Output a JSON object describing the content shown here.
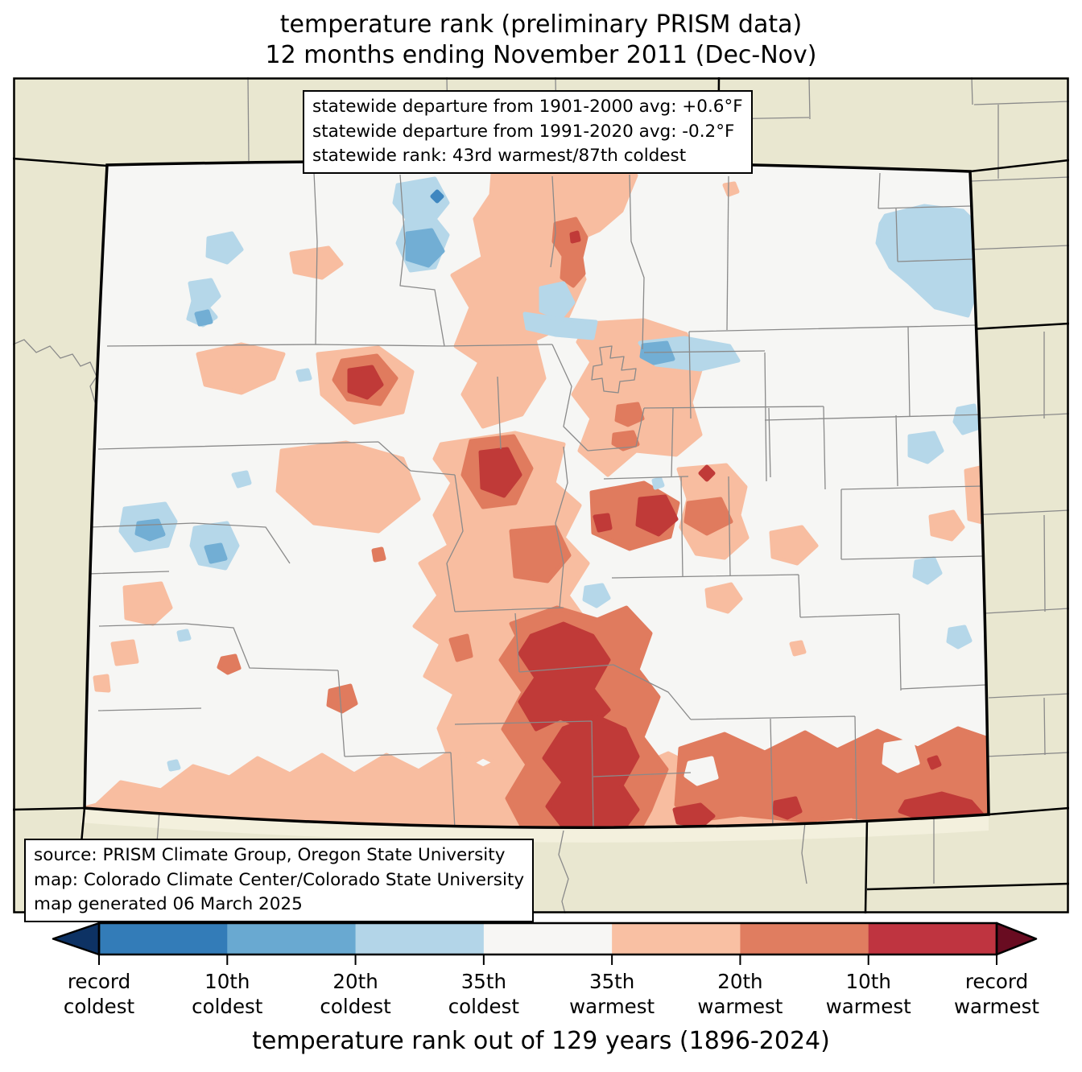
{
  "title": {
    "line1": "temperature rank (preliminary PRISM data)",
    "line2": "12 months ending November 2011 (Dec-Nov)"
  },
  "stats_box": {
    "line1": "statewide departure from 1901-2000 avg: +0.6°F",
    "line2": "statewide departure from 1991-2020 avg: -0.2°F",
    "line3": "statewide rank: 43rd warmest/87th coldest"
  },
  "source_box": {
    "line1": "source: PRISM Climate Group, Oregon State University",
    "line2": "map: Colorado Climate Center/Colorado State University",
    "line3": "map generated 06 March 2025"
  },
  "colorbar": {
    "caption": "temperature rank out of 129 years (1896-2024)",
    "labels": [
      {
        "l1": "record",
        "l2": "coldest"
      },
      {
        "l1": "10th",
        "l2": "coldest"
      },
      {
        "l1": "20th",
        "l2": "coldest"
      },
      {
        "l1": "35th",
        "l2": "coldest"
      },
      {
        "l1": "35th",
        "l2": "warmest"
      },
      {
        "l1": "20th",
        "l2": "warmest"
      },
      {
        "l1": "10th",
        "l2": "warmest"
      },
      {
        "l1": "record",
        "l2": "warmest"
      }
    ],
    "segments": [
      {
        "name": "record-to-10th-coldest",
        "color": "#337cb8"
      },
      {
        "name": "10th-to-20th-coldest",
        "color": "#69a9d1"
      },
      {
        "name": "20th-to-35th-coldest",
        "color": "#b3d5e8"
      },
      {
        "name": "35th-coldest-to-35th-warmest",
        "color": "#f7f6f4"
      },
      {
        "name": "35th-to-20th-warmest",
        "color": "#f9c0a3"
      },
      {
        "name": "20th-to-10th-warmest",
        "color": "#e07d60"
      },
      {
        "name": "10th-warmest-to-record",
        "color": "#bf3440"
      }
    ],
    "arrow_left_color": "#0d3264",
    "arrow_right_color": "#690c21"
  },
  "map": {
    "region": "Colorado",
    "colors": {
      "outside_states": "#e9e7d0",
      "border_strip": "#f3f0dd",
      "state_fill": "#f6f6f4",
      "rank_35th_warmest": "#f8bda0",
      "rank_20th_warmest": "#e07b5e",
      "rank_10th_warmest": "#c03a38",
      "rank_35th_coldest": "#b5d7e9",
      "rank_20th_coldest": "#72aed4",
      "rank_10th_coldest": "#3f87c0",
      "county_line": "#8a8a8a"
    }
  }
}
